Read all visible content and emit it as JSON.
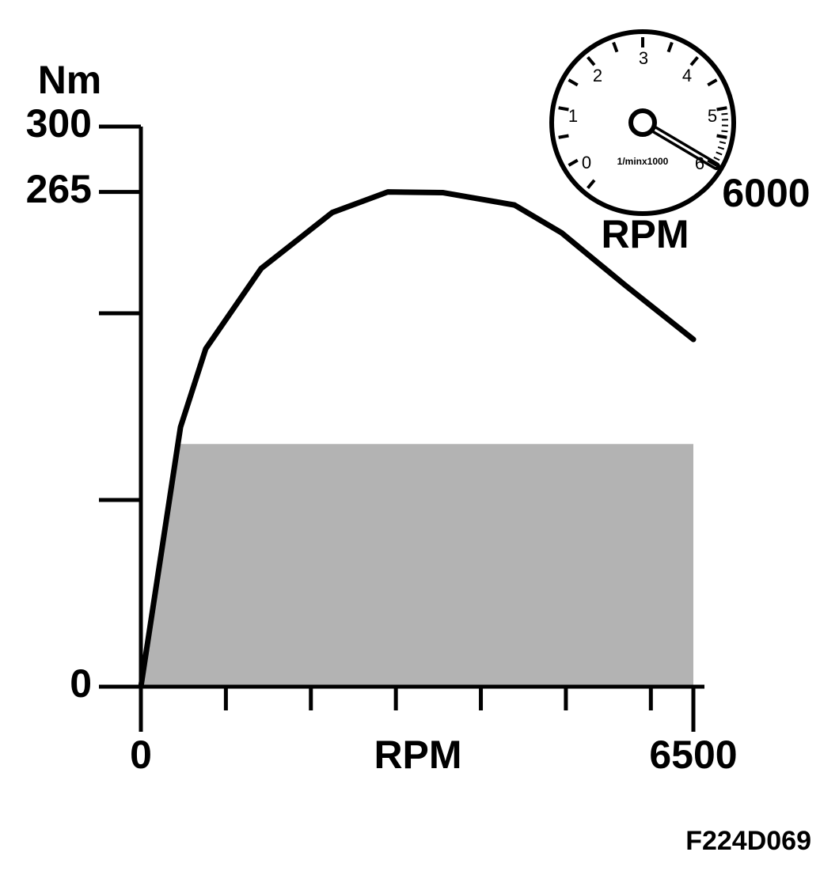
{
  "chart_data": {
    "type": "line",
    "y_label": "Nm",
    "x_label": "RPM",
    "x": [
      0,
      466,
      763,
      1415,
      2253,
      2905,
      3557,
      4395,
      4953,
      5698,
      6500
    ],
    "values": [
      0,
      139,
      181,
      224,
      254,
      265,
      264.6,
      258,
      243,
      215,
      186
    ],
    "color": "#000000",
    "area": {
      "x": [
        0,
        466,
        6500
      ],
      "values": [
        0,
        130,
        130
      ],
      "color": "#b3b3b3"
    },
    "xlim": [
      0,
      6500
    ],
    "xticks": [
      0,
      6500
    ],
    "x_minor_ticks": [
      1000,
      2000,
      3000,
      4000,
      5000,
      6000
    ],
    "ylim": [
      0,
      300
    ],
    "yticks": [
      0,
      265,
      300
    ],
    "y_minor_ticks": [
      100,
      200
    ],
    "gauge": {
      "labels": [
        "0",
        "1",
        "2",
        "3",
        "4",
        "5",
        "6"
      ],
      "unit": "1/minx1000",
      "reading": "6000",
      "label": "RPM"
    },
    "figure_code": "F224D069"
  }
}
